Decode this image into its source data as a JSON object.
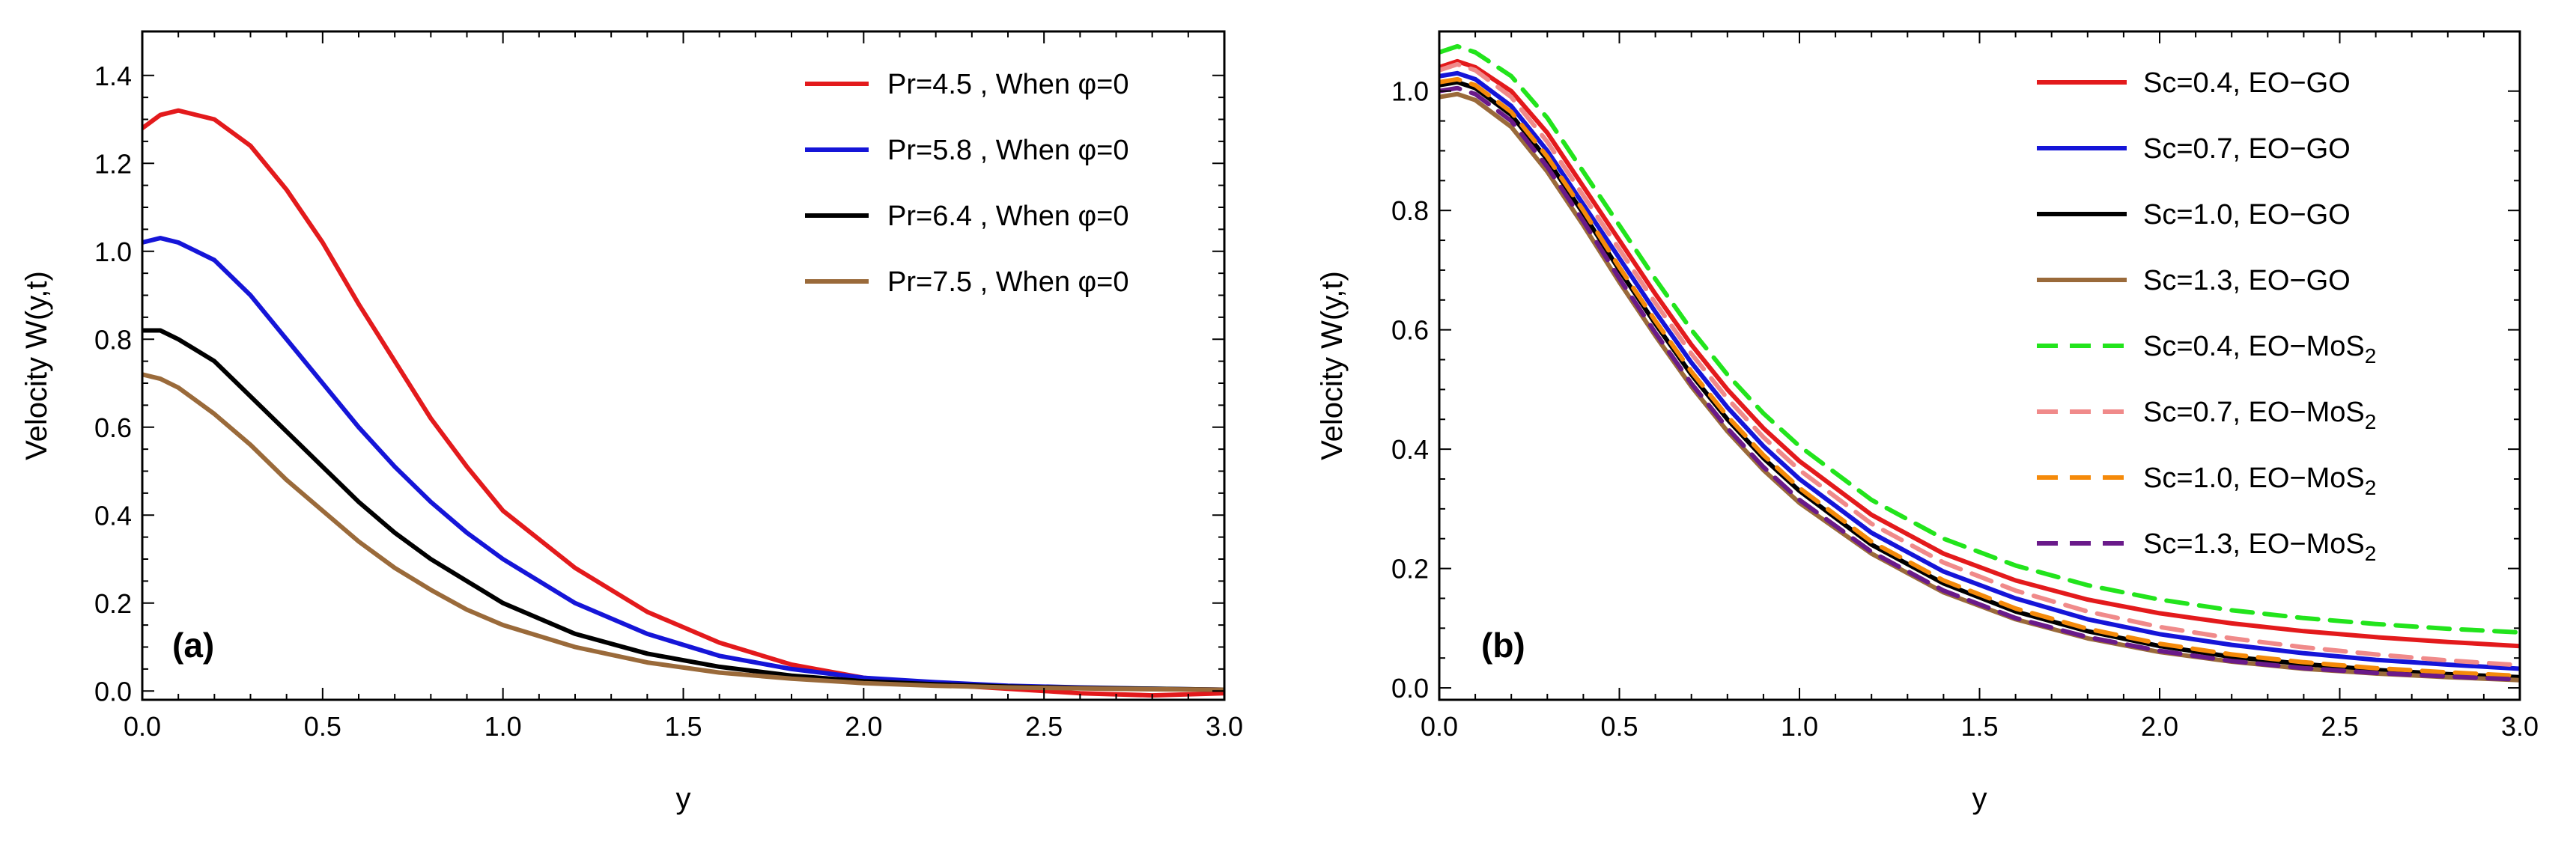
{
  "chart_data": [
    {
      "type": "line",
      "panel_label": "(a)",
      "xlabel": "y",
      "ylabel": "Velocity W(y,t)",
      "xlim": [
        0,
        3.0
      ],
      "ylim": [
        -0.02,
        1.5
      ],
      "xticks": [
        "0.0",
        "0.5",
        "1.0",
        "1.5",
        "2.0",
        "2.5",
        "3.0"
      ],
      "yticks": [
        "0.0",
        "0.2",
        "0.4",
        "0.6",
        "0.8",
        "1.0",
        "1.2",
        "1.4"
      ],
      "legend_position": "top-right",
      "x": [
        0,
        0.05,
        0.1,
        0.2,
        0.3,
        0.4,
        0.5,
        0.6,
        0.7,
        0.8,
        0.9,
        1.0,
        1.2,
        1.4,
        1.6,
        1.8,
        2.0,
        2.2,
        2.4,
        2.6,
        2.8,
        3.0
      ],
      "series": [
        {
          "name": "Pr=4.5 , When φ=0",
          "color": "#e31a1c",
          "dash": "solid",
          "values": [
            1.28,
            1.31,
            1.32,
            1.3,
            1.24,
            1.14,
            1.02,
            0.88,
            0.75,
            0.62,
            0.51,
            0.41,
            0.28,
            0.18,
            0.11,
            0.06,
            0.03,
            0.015,
            0.005,
            -0.005,
            -0.01,
            -0.005
          ]
        },
        {
          "name": "Pr=5.8 , When φ=0",
          "color": "#1515d8",
          "dash": "solid",
          "values": [
            1.02,
            1.03,
            1.02,
            0.98,
            0.9,
            0.8,
            0.7,
            0.6,
            0.51,
            0.43,
            0.36,
            0.3,
            0.2,
            0.13,
            0.08,
            0.05,
            0.03,
            0.02,
            0.012,
            0.008,
            0.005,
            0.003
          ]
        },
        {
          "name": "Pr=6.4 , When φ=0",
          "color": "#000000",
          "dash": "solid",
          "values": [
            0.82,
            0.82,
            0.8,
            0.75,
            0.67,
            0.59,
            0.51,
            0.43,
            0.36,
            0.3,
            0.25,
            0.2,
            0.13,
            0.085,
            0.055,
            0.035,
            0.022,
            0.015,
            0.01,
            0.007,
            0.005,
            0.003
          ]
        },
        {
          "name": "Pr=7.5 , When φ=0",
          "color": "#9a6a3a",
          "dash": "solid",
          "values": [
            0.72,
            0.71,
            0.69,
            0.63,
            0.56,
            0.48,
            0.41,
            0.34,
            0.28,
            0.23,
            0.185,
            0.15,
            0.1,
            0.065,
            0.042,
            0.028,
            0.018,
            0.012,
            0.008,
            0.006,
            0.004,
            0.003
          ]
        }
      ]
    },
    {
      "type": "line",
      "panel_label": "(b)",
      "xlabel": "y",
      "ylabel": "Velocity W(y,t)",
      "xlim": [
        0,
        3.0
      ],
      "ylim": [
        -0.02,
        1.1
      ],
      "xticks": [
        "0.0",
        "0.5",
        "1.0",
        "1.5",
        "2.0",
        "2.5",
        "3.0"
      ],
      "yticks": [
        "0.0",
        "0.2",
        "0.4",
        "0.6",
        "0.8",
        "1.0"
      ],
      "legend_position": "top-right",
      "x": [
        0,
        0.05,
        0.1,
        0.2,
        0.3,
        0.4,
        0.5,
        0.6,
        0.7,
        0.8,
        0.9,
        1.0,
        1.2,
        1.4,
        1.6,
        1.8,
        2.0,
        2.2,
        2.4,
        2.6,
        2.8,
        3.0
      ],
      "series": [
        {
          "name": "Sc=0.4, EO−GO",
          "legend_main": "Sc=0.4, EO−GO",
          "legend_sub": "",
          "color": "#e31a1c",
          "dash": "solid",
          "values": [
            1.04,
            1.05,
            1.04,
            1.0,
            0.93,
            0.84,
            0.75,
            0.66,
            0.575,
            0.5,
            0.435,
            0.38,
            0.29,
            0.225,
            0.18,
            0.148,
            0.125,
            0.108,
            0.095,
            0.085,
            0.077,
            0.07
          ]
        },
        {
          "name": "Sc=0.7, EO−GO",
          "legend_main": "Sc=0.7, EO−GO",
          "legend_sub": "",
          "color": "#1515d8",
          "dash": "solid",
          "values": [
            1.025,
            1.03,
            1.02,
            0.975,
            0.9,
            0.81,
            0.72,
            0.63,
            0.545,
            0.47,
            0.405,
            0.35,
            0.26,
            0.195,
            0.15,
            0.115,
            0.09,
            0.072,
            0.058,
            0.047,
            0.039,
            0.032
          ]
        },
        {
          "name": "Sc=1.0, EO−GO",
          "legend_main": "Sc=1.0, EO−GO",
          "legend_sub": "",
          "color": "#000000",
          "dash": "solid",
          "values": [
            1.01,
            1.015,
            1.005,
            0.96,
            0.885,
            0.795,
            0.7,
            0.61,
            0.525,
            0.45,
            0.385,
            0.33,
            0.24,
            0.175,
            0.128,
            0.095,
            0.07,
            0.052,
            0.04,
            0.03,
            0.023,
            0.018
          ]
        },
        {
          "name": "Sc=1.3, EO−GO",
          "legend_main": "Sc=1.3, EO−GO",
          "legend_sub": "",
          "color": "#9a6a3a",
          "dash": "solid",
          "values": [
            0.99,
            0.995,
            0.985,
            0.94,
            0.865,
            0.775,
            0.68,
            0.59,
            0.505,
            0.43,
            0.365,
            0.31,
            0.225,
            0.16,
            0.115,
            0.083,
            0.06,
            0.044,
            0.032,
            0.024,
            0.018,
            0.013
          ]
        },
        {
          "name": "Sc=0.4, EO−MoS2",
          "legend_main": "Sc=0.4, EO−MoS",
          "legend_sub": "2",
          "color": "#22e41c",
          "dash": "dashed",
          "values": [
            1.065,
            1.075,
            1.065,
            1.025,
            0.955,
            0.865,
            0.775,
            0.685,
            0.6,
            0.525,
            0.46,
            0.405,
            0.315,
            0.25,
            0.205,
            0.172,
            0.148,
            0.13,
            0.117,
            0.107,
            0.099,
            0.093
          ]
        },
        {
          "name": "Sc=0.7, EO−MoS2",
          "legend_main": "Sc=0.7, EO−MoS",
          "legend_sub": "2",
          "color": "#f08a8a",
          "dash": "dashed",
          "values": [
            1.035,
            1.045,
            1.035,
            0.99,
            0.915,
            0.825,
            0.735,
            0.645,
            0.56,
            0.485,
            0.42,
            0.365,
            0.275,
            0.21,
            0.163,
            0.128,
            0.102,
            0.083,
            0.068,
            0.056,
            0.046,
            0.038
          ]
        },
        {
          "name": "Sc=1.0, EO−MoS2",
          "legend_main": "Sc=1.0, EO−MoS",
          "legend_sub": "2",
          "color": "#f58a0a",
          "dash": "dashed",
          "values": [
            1.015,
            1.02,
            1.01,
            0.965,
            0.89,
            0.8,
            0.705,
            0.615,
            0.53,
            0.455,
            0.39,
            0.335,
            0.245,
            0.18,
            0.133,
            0.099,
            0.074,
            0.056,
            0.043,
            0.033,
            0.026,
            0.02
          ]
        },
        {
          "name": "Sc=1.3, EO−MoS2",
          "legend_main": "Sc=1.3, EO−MoS",
          "legend_sub": "2",
          "color": "#6a1a8a",
          "dash": "dashed",
          "values": [
            1.0,
            1.005,
            0.995,
            0.95,
            0.873,
            0.782,
            0.686,
            0.595,
            0.51,
            0.435,
            0.37,
            0.315,
            0.228,
            0.163,
            0.117,
            0.085,
            0.062,
            0.045,
            0.033,
            0.025,
            0.019,
            0.014
          ]
        }
      ]
    }
  ]
}
